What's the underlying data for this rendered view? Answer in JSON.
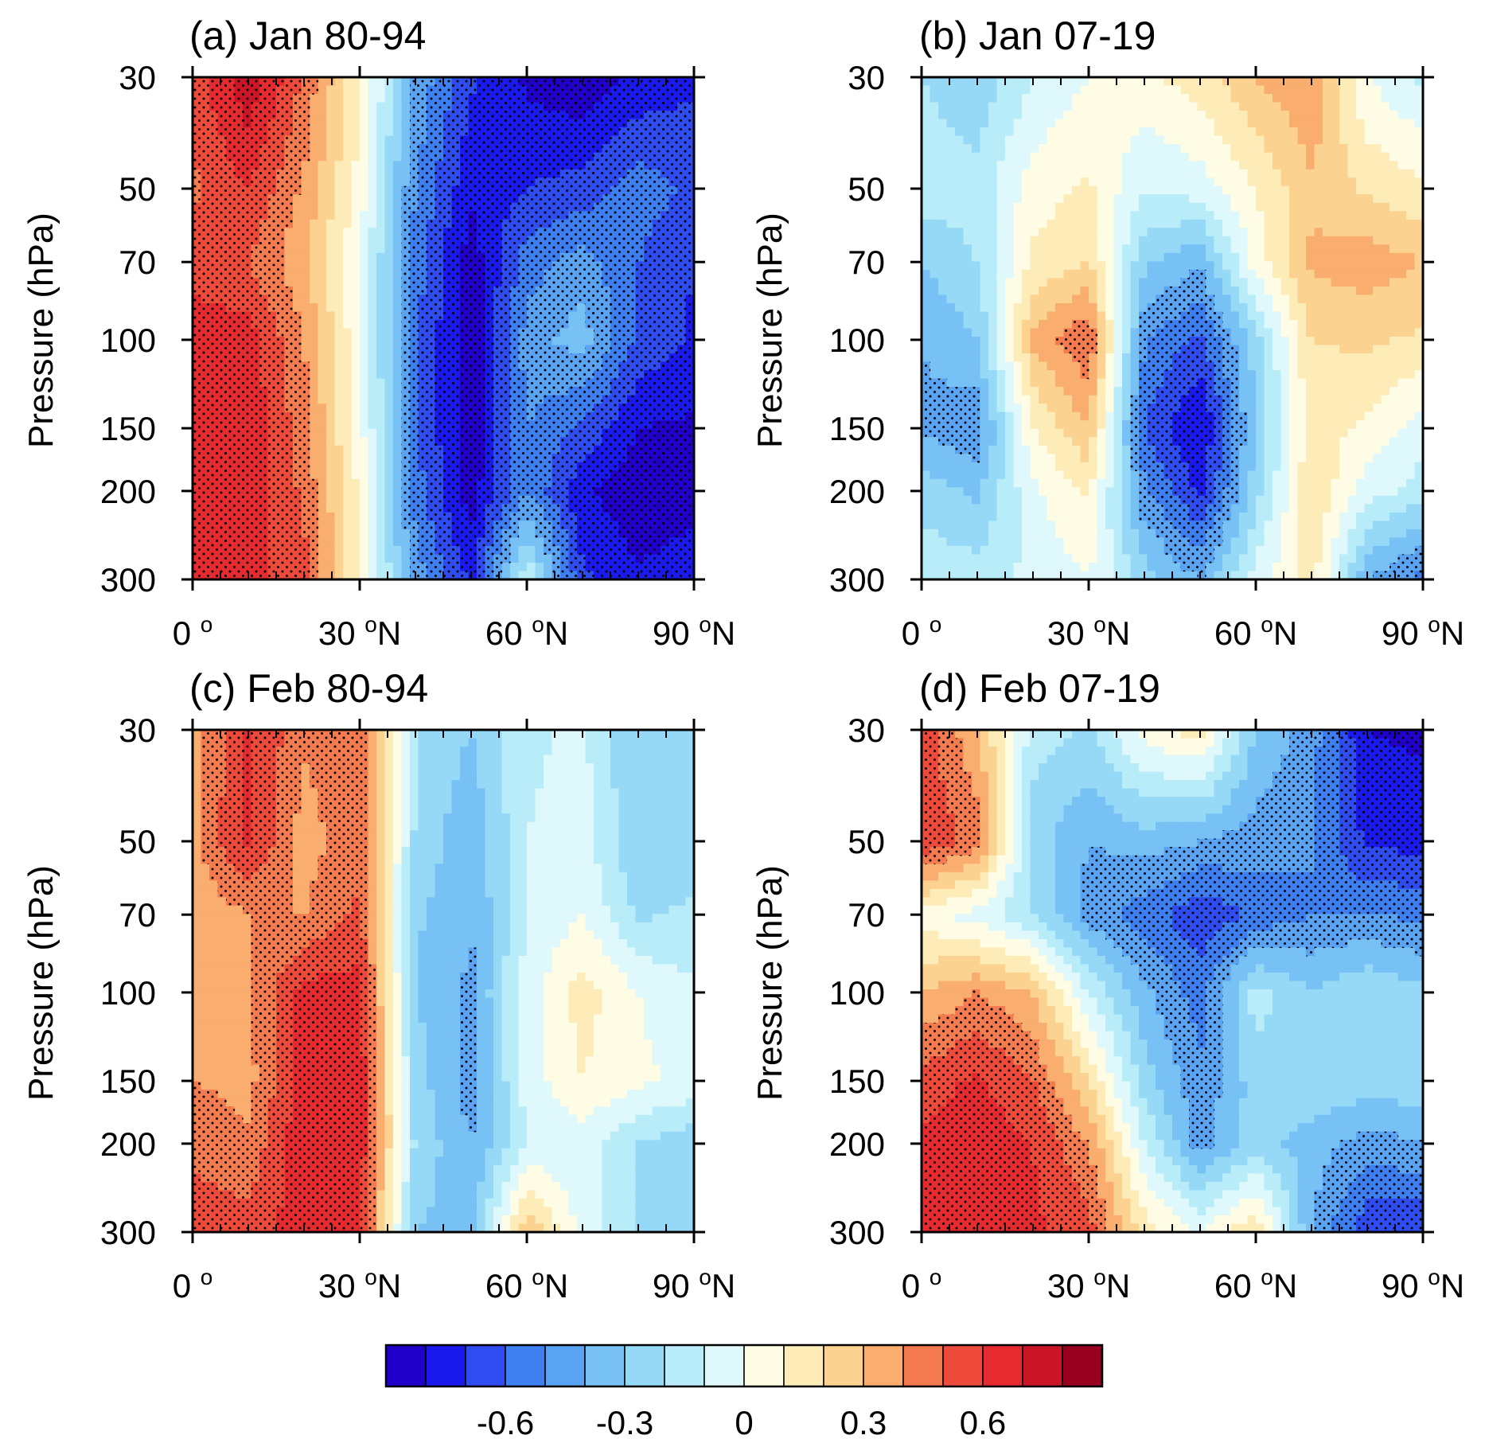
{
  "chart_data": {
    "type": "heatmap",
    "colorbar": {
      "colors": [
        "#2200cc",
        "#1a1aee",
        "#2e4cf0",
        "#3d7ef0",
        "#5aa3f2",
        "#77c1f5",
        "#96d9f7",
        "#b8ecf8",
        "#def8fb",
        "#fffce6",
        "#fdecb8",
        "#fcd290",
        "#f9ad6e",
        "#f47a50",
        "#ee4a3b",
        "#e52a30",
        "#cc1628",
        "#980020"
      ],
      "tick_values": [
        -0.6,
        -0.3,
        0,
        0.3,
        0.6
      ],
      "tick_labels": [
        "-0.6",
        "-0.3",
        "0",
        "0.3",
        "0.6"
      ],
      "range": [
        -0.9,
        0.9
      ]
    },
    "ylabel": "Pressure (hPa)",
    "yticks": [
      30,
      50,
      70,
      100,
      150,
      200,
      300
    ],
    "xticks": [
      {
        "value": 0,
        "label": "0",
        "suffix": ""
      },
      {
        "value": 30,
        "label": "30",
        "suffix": "N"
      },
      {
        "value": 60,
        "label": "60",
        "suffix": "N"
      },
      {
        "value": 90,
        "label": "90",
        "suffix": "N"
      }
    ],
    "degree_mark": "o",
    "ylim": [
      30,
      300
    ],
    "xlim": [
      0,
      90
    ],
    "lat_nodes": [
      0,
      10,
      20,
      30,
      40,
      50,
      60,
      70,
      80,
      90
    ],
    "lev_nodes": [
      30,
      50,
      70,
      100,
      150,
      200,
      300
    ],
    "panels": [
      {
        "title": "(a) Jan 80-94",
        "grid": [
          [
            0.55,
            0.78,
            0.48,
            0.12,
            -0.42,
            -0.68,
            -0.82,
            -0.88,
            -0.78,
            -0.72
          ],
          [
            0.48,
            0.6,
            0.38,
            0.06,
            -0.5,
            -0.78,
            -0.7,
            -0.66,
            -0.55,
            -0.62
          ],
          [
            0.55,
            0.5,
            0.32,
            0.0,
            -0.55,
            -0.86,
            -0.55,
            -0.45,
            -0.6,
            -0.7
          ],
          [
            0.66,
            0.65,
            0.4,
            0.02,
            -0.58,
            -0.88,
            -0.45,
            -0.35,
            -0.62,
            -0.72
          ],
          [
            0.68,
            0.68,
            0.44,
            0.04,
            -0.58,
            -0.88,
            -0.5,
            -0.62,
            -0.8,
            -0.82
          ],
          [
            0.66,
            0.66,
            0.48,
            0.08,
            -0.55,
            -0.86,
            -0.5,
            -0.78,
            -0.88,
            -0.84
          ],
          [
            0.62,
            0.64,
            0.54,
            0.1,
            -0.45,
            -0.72,
            -0.1,
            -0.68,
            -0.78,
            -0.74
          ]
        ]
      },
      {
        "title": "(b) Jan 07-19",
        "grid": [
          [
            -0.2,
            -0.28,
            -0.1,
            0.0,
            0.08,
            0.15,
            0.3,
            0.4,
            0.0,
            -0.12
          ],
          [
            -0.14,
            -0.16,
            0.05,
            0.12,
            -0.1,
            -0.05,
            0.1,
            0.28,
            0.18,
            0.12
          ],
          [
            -0.3,
            -0.2,
            0.12,
            0.2,
            -0.28,
            -0.38,
            0.05,
            0.32,
            0.36,
            0.3
          ],
          [
            -0.4,
            -0.3,
            0.32,
            0.5,
            -0.5,
            -0.62,
            -0.25,
            0.2,
            0.22,
            0.18
          ],
          [
            -0.42,
            -0.48,
            0.1,
            0.3,
            -0.6,
            -0.82,
            -0.3,
            0.15,
            0.08,
            -0.05
          ],
          [
            -0.25,
            -0.32,
            -0.02,
            0.12,
            -0.48,
            -0.72,
            -0.25,
            0.2,
            -0.05,
            -0.15
          ],
          [
            -0.12,
            -0.15,
            -0.08,
            0.0,
            -0.25,
            -0.4,
            -0.05,
            0.15,
            -0.4,
            -0.55
          ]
        ]
      },
      {
        "title": "(c) Feb 80-94",
        "grid": [
          [
            0.35,
            0.62,
            0.42,
            0.48,
            -0.2,
            -0.3,
            -0.12,
            -0.08,
            -0.3,
            -0.22
          ],
          [
            0.38,
            0.62,
            0.35,
            0.48,
            -0.22,
            -0.38,
            -0.1,
            -0.05,
            -0.3,
            -0.24
          ],
          [
            0.32,
            0.4,
            0.4,
            0.52,
            -0.28,
            -0.4,
            -0.1,
            0.0,
            -0.22,
            -0.18
          ],
          [
            0.38,
            0.38,
            0.64,
            0.65,
            -0.3,
            -0.42,
            -0.05,
            0.15,
            0.0,
            -0.08
          ],
          [
            0.4,
            0.36,
            0.66,
            0.68,
            -0.25,
            -0.45,
            -0.05,
            0.1,
            0.02,
            -0.02
          ],
          [
            0.48,
            0.42,
            0.68,
            0.68,
            -0.22,
            -0.4,
            -0.1,
            -0.05,
            -0.2,
            -0.28
          ],
          [
            0.55,
            0.55,
            0.66,
            0.6,
            -0.3,
            -0.35,
            0.3,
            -0.05,
            -0.2,
            -0.3
          ]
        ]
      },
      {
        "title": "(d) Feb 07-19",
        "grid": [
          [
            0.55,
            0.32,
            -0.15,
            -0.22,
            0.05,
            0.15,
            -0.3,
            -0.45,
            -0.8,
            -0.82
          ],
          [
            0.6,
            0.45,
            -0.25,
            -0.4,
            -0.35,
            -0.4,
            -0.45,
            -0.5,
            -0.72,
            -0.74
          ],
          [
            0.05,
            -0.05,
            -0.2,
            -0.45,
            -0.55,
            -0.68,
            -0.58,
            -0.5,
            -0.5,
            -0.52
          ],
          [
            0.3,
            0.4,
            0.3,
            -0.1,
            -0.38,
            -0.55,
            -0.15,
            -0.3,
            -0.2,
            -0.28
          ],
          [
            0.55,
            0.62,
            0.5,
            0.2,
            -0.25,
            -0.48,
            -0.25,
            -0.2,
            -0.25,
            -0.22
          ],
          [
            0.62,
            0.66,
            0.6,
            0.4,
            -0.1,
            -0.45,
            -0.25,
            -0.35,
            -0.45,
            -0.4
          ],
          [
            0.62,
            0.6,
            0.62,
            0.55,
            0.15,
            0.0,
            0.2,
            -0.4,
            -0.68,
            -0.7
          ]
        ]
      }
    ]
  }
}
